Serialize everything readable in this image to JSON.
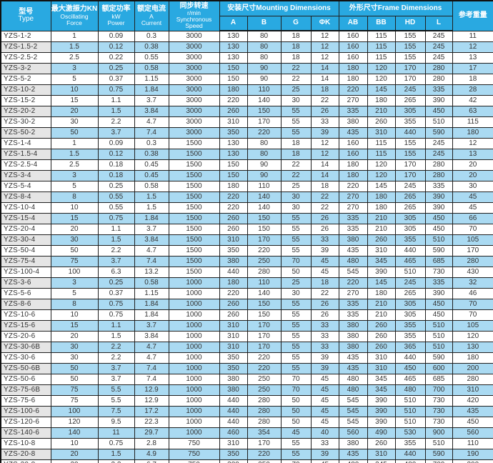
{
  "colors": {
    "header_bg": "#29a9e1",
    "stripe_blue": "#aadaf2",
    "stripe_gray": "#e5e5e5",
    "border": "#1f1f1f",
    "header_text": "#ffffff",
    "body_text": "#333333"
  },
  "table": {
    "header": {
      "type_zh": "型号",
      "type_en": "Type",
      "force_zh": "最大激振力KN",
      "force_en1": "Oscillating",
      "force_en2": "Force",
      "power_zh": "额定功率",
      "power_unit": "kW",
      "power_en": "Power",
      "current_zh": "额定电流",
      "current_unit": "A",
      "current_en": "Current",
      "speed_zh": "同步转速",
      "speed_unit": "r/min",
      "speed_en1": "Synchronous",
      "speed_en2": "Speed",
      "mounting_group": "安装尺寸Mounting Dimensions",
      "frame_group": "外形尺寸Frame Dimensions",
      "weight": "参考重量",
      "sub": [
        "A",
        "B",
        "G",
        "ΦK",
        "AB",
        "BB",
        "HD",
        "L"
      ]
    },
    "rows": [
      [
        "YZS-1-2",
        "1",
        "0.09",
        "0.3",
        "3000",
        "130",
        "80",
        "18",
        "12",
        "160",
        "115",
        "155",
        "245",
        "11"
      ],
      [
        "YZS-1.5-2",
        "1.5",
        "0.12",
        "0.38",
        "3000",
        "130",
        "80",
        "18",
        "12",
        "160",
        "115",
        "155",
        "245",
        "12"
      ],
      [
        "YZS-2.5-2",
        "2.5",
        "0.22",
        "0.55",
        "3000",
        "130",
        "80",
        "18",
        "12",
        "160",
        "115",
        "155",
        "245",
        "13"
      ],
      [
        "YZS-3-2",
        "3",
        "0.25",
        "0.58",
        "3000",
        "150",
        "90",
        "22",
        "14",
        "180",
        "120",
        "170",
        "280",
        "17"
      ],
      [
        "YZS-5-2",
        "5",
        "0.37",
        "1.15",
        "3000",
        "150",
        "90",
        "22",
        "14",
        "180",
        "120",
        "170",
        "280",
        "18"
      ],
      [
        "YZS-10-2",
        "10",
        "0.75",
        "1.84",
        "3000",
        "180",
        "110",
        "25",
        "18",
        "220",
        "145",
        "245",
        "335",
        "28"
      ],
      [
        "YZS-15-2",
        "15",
        "1.1",
        "3.7",
        "3000",
        "220",
        "140",
        "30",
        "22",
        "270",
        "180",
        "265",
        "390",
        "42"
      ],
      [
        "YZS-20-2",
        "20",
        "1.5",
        "3.84",
        "3000",
        "260",
        "150",
        "55",
        "26",
        "335",
        "210",
        "305",
        "450",
        "63"
      ],
      [
        "YZS-30-2",
        "30",
        "2.2",
        "4.7",
        "3000",
        "310",
        "170",
        "55",
        "33",
        "380",
        "260",
        "355",
        "510",
        "115"
      ],
      [
        "YZS-50-2",
        "50",
        "3.7",
        "7.4",
        "3000",
        "350",
        "220",
        "55",
        "39",
        "435",
        "310",
        "440",
        "590",
        "180"
      ],
      [
        "YZS-1-4",
        "1",
        "0.09",
        "0.3",
        "1500",
        "130",
        "80",
        "18",
        "12",
        "160",
        "115",
        "155",
        "245",
        "12"
      ],
      [
        "YZS-1.5-4",
        "1.5",
        "0.12",
        "0.38",
        "1500",
        "130",
        "80",
        "18",
        "12",
        "160",
        "115",
        "155",
        "245",
        "13"
      ],
      [
        "YZS-2.5-4",
        "2.5",
        "0.18",
        "0.45",
        "1500",
        "150",
        "90",
        "22",
        "14",
        "180",
        "120",
        "170",
        "280",
        "20"
      ],
      [
        "YZS-3-4",
        "3",
        "0.18",
        "0.45",
        "1500",
        "150",
        "90",
        "22",
        "14",
        "180",
        "120",
        "170",
        "280",
        "20"
      ],
      [
        "YZS-5-4",
        "5",
        "0.25",
        "0.58",
        "1500",
        "180",
        "110",
        "25",
        "18",
        "220",
        "145",
        "245",
        "335",
        "30"
      ],
      [
        "YZS-8-4",
        "8",
        "0.55",
        "1.5",
        "1500",
        "220",
        "140",
        "30",
        "22",
        "270",
        "180",
        "265",
        "390",
        "45"
      ],
      [
        "YZS-10-4",
        "10",
        "0.55",
        "1.5",
        "1500",
        "220",
        "140",
        "30",
        "22",
        "270",
        "180",
        "265",
        "390",
        "45"
      ],
      [
        "YZS-15-4",
        "15",
        "0.75",
        "1.84",
        "1500",
        "260",
        "150",
        "55",
        "26",
        "335",
        "210",
        "305",
        "450",
        "66"
      ],
      [
        "YZS-20-4",
        "20",
        "1.1",
        "3.7",
        "1500",
        "260",
        "150",
        "55",
        "26",
        "335",
        "210",
        "305",
        "450",
        "70"
      ],
      [
        "YZS-30-4",
        "30",
        "1.5",
        "3.84",
        "1500",
        "310",
        "170",
        "55",
        "33",
        "380",
        "260",
        "355",
        "510",
        "105"
      ],
      [
        "YZS-50-4",
        "50",
        "2.2",
        "4.7",
        "1500",
        "350",
        "220",
        "55",
        "39",
        "435",
        "310",
        "440",
        "590",
        "170"
      ],
      [
        "YZS-75-4",
        "75",
        "3.7",
        "7.4",
        "1500",
        "380",
        "250",
        "70",
        "45",
        "480",
        "345",
        "465",
        "685",
        "280"
      ],
      [
        "YZS-100-4",
        "100",
        "6.3",
        "13.2",
        "1500",
        "440",
        "280",
        "50",
        "45",
        "545",
        "390",
        "510",
        "730",
        "430"
      ],
      [
        "YZS-3-6",
        "3",
        "0.25",
        "0.58",
        "1000",
        "180",
        "110",
        "25",
        "18",
        "220",
        "145",
        "245",
        "335",
        "32"
      ],
      [
        "YZS-5-6",
        "5",
        "0.37",
        "1.15",
        "1000",
        "220",
        "140",
        "30",
        "22",
        "270",
        "180",
        "265",
        "390",
        "46"
      ],
      [
        "YZS-8-6",
        "8",
        "0.75",
        "1.84",
        "1000",
        "260",
        "150",
        "55",
        "26",
        "335",
        "210",
        "305",
        "450",
        "70"
      ],
      [
        "YZS-10-6",
        "10",
        "0.75",
        "1.84",
        "1000",
        "260",
        "150",
        "55",
        "26",
        "335",
        "210",
        "305",
        "450",
        "70"
      ],
      [
        "YZS-15-6",
        "15",
        "1.1",
        "3.7",
        "1000",
        "310",
        "170",
        "55",
        "33",
        "380",
        "260",
        "355",
        "510",
        "105"
      ],
      [
        "YZS-20-6",
        "20",
        "1.5",
        "3.84",
        "1000",
        "310",
        "170",
        "55",
        "33",
        "380",
        "260",
        "355",
        "510",
        "120"
      ],
      [
        "YZS-30-6B",
        "30",
        "2.2",
        "4.7",
        "1000",
        "310",
        "170",
        "55",
        "33",
        "380",
        "260",
        "365",
        "510",
        "130"
      ],
      [
        "YZS-30-6",
        "30",
        "2.2",
        "4.7",
        "1000",
        "350",
        "220",
        "55",
        "39",
        "435",
        "310",
        "440",
        "590",
        "180"
      ],
      [
        "YZS-50-6B",
        "50",
        "3.7",
        "7.4",
        "1000",
        "350",
        "220",
        "55",
        "39",
        "435",
        "310",
        "450",
        "600",
        "200"
      ],
      [
        "YZS-50-6",
        "50",
        "3.7",
        "7.4",
        "1000",
        "380",
        "250",
        "70",
        "45",
        "480",
        "345",
        "465",
        "685",
        "280"
      ],
      [
        "YZS-75-6B",
        "75",
        "5.5",
        "12.9",
        "1000",
        "380",
        "250",
        "70",
        "45",
        "480",
        "345",
        "480",
        "700",
        "310"
      ],
      [
        "YZS-75-6",
        "75",
        "5.5",
        "12.9",
        "1000",
        "440",
        "280",
        "50",
        "45",
        "545",
        "390",
        "510",
        "730",
        "420"
      ],
      [
        "YZS-100-6",
        "100",
        "7.5",
        "17.2",
        "1000",
        "440",
        "280",
        "50",
        "45",
        "545",
        "390",
        "510",
        "730",
        "435"
      ],
      [
        "YZS-120-6",
        "120",
        "9.5",
        "22.3",
        "1000",
        "440",
        "280",
        "50",
        "45",
        "545",
        "390",
        "510",
        "730",
        "450"
      ],
      [
        "YZS-140-6",
        "140",
        "11",
        "29.7",
        "1000",
        "460",
        "354",
        "45",
        "40",
        "560",
        "490",
        "530",
        "900",
        "560"
      ],
      [
        "YZS-10-8",
        "10",
        "0.75",
        "2.8",
        "750",
        "310",
        "170",
        "55",
        "33",
        "380",
        "260",
        "355",
        "510",
        "110"
      ],
      [
        "YZS-20-8",
        "20",
        "1.5",
        "4.9",
        "750",
        "350",
        "220",
        "55",
        "39",
        "435",
        "310",
        "440",
        "590",
        "190"
      ],
      [
        "YZS-30-8",
        "30",
        "2.2",
        "6.7",
        "750",
        "380",
        "250",
        "70",
        "45",
        "480",
        "345",
        "480",
        "700",
        "300"
      ],
      [
        "YZS-50-8",
        "50",
        "3.7",
        "9.7",
        "750",
        "440",
        "280",
        "50",
        "45",
        "545",
        "390",
        "510",
        "730",
        "430"
      ]
    ]
  }
}
